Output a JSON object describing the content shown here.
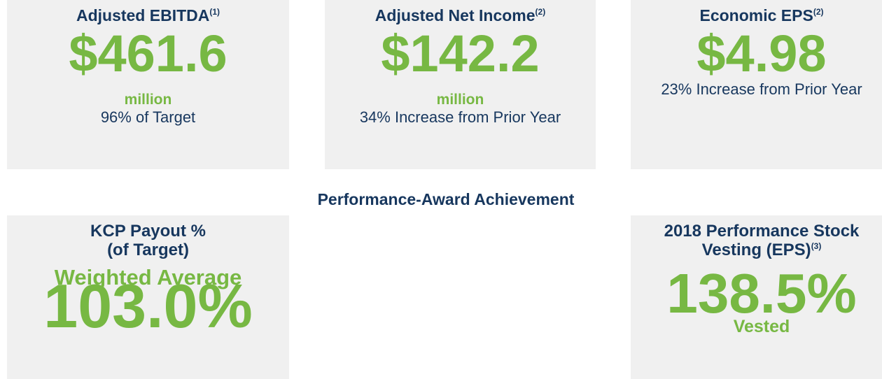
{
  "metrics": [
    {
      "title": "Adjusted EBITDA",
      "footnote": "(1)",
      "value": "$461.6",
      "unit": "million",
      "note": "96% of Target"
    },
    {
      "title": "Adjusted Net Income",
      "footnote": "(2)",
      "value": "$142.2",
      "unit": "million",
      "note": "34% Increase from Prior Year"
    },
    {
      "title": "Economic EPS",
      "footnote": "(2)",
      "value": "$4.98",
      "note": "23% Increase from Prior Year"
    }
  ],
  "section_title": "Performance-Award Achievement",
  "awards": [
    {
      "title_lines": [
        "KCP Payout %",
        "(of Target)"
      ],
      "subtitle": "Weighted Average",
      "value": "103.0%"
    },
    {
      "title_lines": [
        "2018 Performance Stock",
        "Vesting (EPS)"
      ],
      "footnote": "(3)",
      "value": "138.5%",
      "unit": "Vested"
    }
  ]
}
